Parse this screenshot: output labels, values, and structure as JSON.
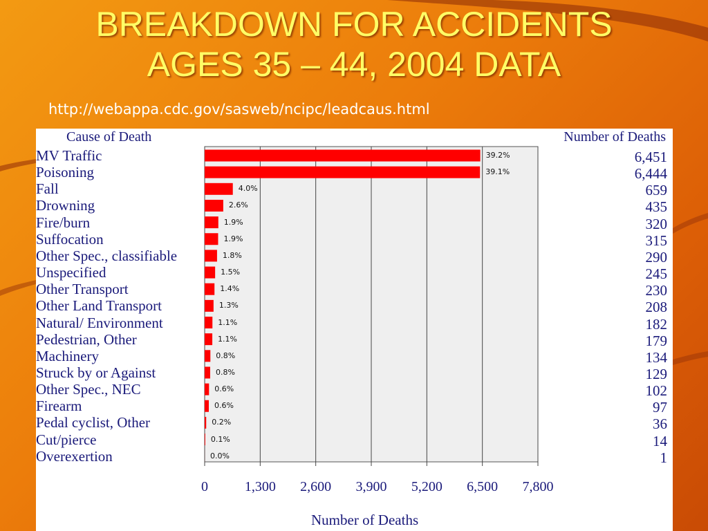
{
  "slide": {
    "title_line1": "BREAKDOWN FOR ACCIDENTS",
    "title_line2": "AGES 35 – 44, 2004 DATA",
    "source_url": "http://webappa.cdc.gov/sasweb/ncipc/leadcaus.html"
  },
  "colors": {
    "bar": "#ff0000",
    "plot_bg": "#efefef",
    "label_text": "#1a1a7a"
  },
  "chart_data": {
    "type": "bar",
    "orientation": "horizontal",
    "left_header": "Cause of Death",
    "right_header": "Number of Deaths",
    "xlabel": "Number of Deaths",
    "xlim": [
      0,
      7800
    ],
    "xticks": [
      0,
      1300,
      2600,
      3900,
      5200,
      6500,
      7800
    ],
    "xtick_labels": [
      "0",
      "1,300",
      "2,600",
      "3,900",
      "5,200",
      "6,500",
      "7,800"
    ],
    "grid": true,
    "categories": [
      "MV Traffic",
      "Poisoning",
      "Fall",
      "Drowning",
      "Fire/burn",
      "Suffocation",
      "Other Spec., classifiable",
      "Unspecified",
      "Other Transport",
      "Other Land Transport",
      "Natural/ Environment",
      "Pedestrian, Other",
      "Machinery",
      "Struck by or Against",
      "Other Spec., NEC",
      "Firearm",
      "Pedal cyclist, Other",
      "Cut/pierce",
      "Overexertion"
    ],
    "values": [
      6451,
      6444,
      659,
      435,
      320,
      315,
      290,
      245,
      230,
      208,
      182,
      179,
      134,
      129,
      102,
      97,
      36,
      14,
      1
    ],
    "value_labels": [
      "6,451",
      "6,444",
      "659",
      "435",
      "320",
      "315",
      "290",
      "245",
      "230",
      "208",
      "182",
      "179",
      "134",
      "129",
      "102",
      "97",
      "36",
      "14",
      "1"
    ],
    "percent_labels": [
      "39.2%",
      "39.1%",
      "4.0%",
      "2.6%",
      "1.9%",
      "1.9%",
      "1.8%",
      "1.5%",
      "1.4%",
      "1.3%",
      "1.1%",
      "1.1%",
      "0.8%",
      "0.8%",
      "0.6%",
      "0.6%",
      "0.2%",
      "0.1%",
      "0.0%"
    ]
  }
}
